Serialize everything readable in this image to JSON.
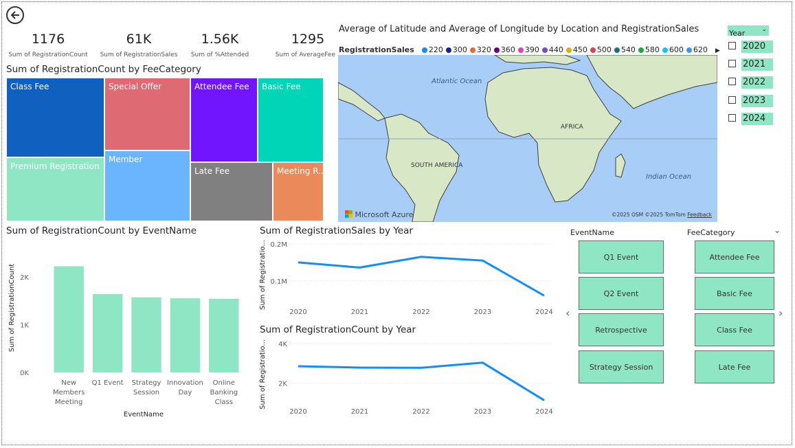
{
  "kpis": [
    {
      "value": "1176",
      "label": "Sum of RegistrationCount"
    },
    {
      "value": "61K",
      "label": "Sum of RegistrationSales"
    },
    {
      "value": "1.56K",
      "label": "Sum of %Attended"
    },
    {
      "value": "1295",
      "label": "Sum of AverageFee"
    }
  ],
  "treemap": {
    "title": "Sum of RegistrationCount by FeeCategory",
    "tiles": [
      {
        "label": "Class Fee",
        "color": "#1060c0"
      },
      {
        "label": "Premium Registration",
        "color": "#8fe6c5"
      },
      {
        "label": "Special Offer",
        "color": "#de6a73"
      },
      {
        "label": "Member",
        "color": "#6bb5ff"
      },
      {
        "label": "Attendee Fee",
        "color": "#7215ff"
      },
      {
        "label": "Basic Fee",
        "color": "#00d6b7"
      },
      {
        "label": "Late Fee",
        "color": "#808080"
      },
      {
        "label": "Meeting R...",
        "color": "#ea8a5a"
      }
    ]
  },
  "map": {
    "title": "Average of Latitude and Average of Longitude by Location and RegistrationSales",
    "legend_title": "RegistrationSales",
    "legend": [
      {
        "label": "220",
        "color": "#118dff"
      },
      {
        "label": "300",
        "color": "#12239e"
      },
      {
        "label": "320",
        "color": "#e66c37"
      },
      {
        "label": "360",
        "color": "#6b007b"
      },
      {
        "label": "390",
        "color": "#e044a7"
      },
      {
        "label": "440",
        "color": "#744ec2"
      },
      {
        "label": "450",
        "color": "#d9b300"
      },
      {
        "label": "500",
        "color": "#d64550"
      },
      {
        "label": "540",
        "color": "#197278"
      },
      {
        "label": "580",
        "color": "#1aab40"
      },
      {
        "label": "600",
        "color": "#15c6f4"
      },
      {
        "label": "620",
        "color": "#4092ff"
      }
    ],
    "labels": {
      "atlantic": "Atlantic Ocean",
      "africa": "AFRICA",
      "south_america": "SOUTH AMERICA",
      "indian": "Indian Ocean"
    },
    "brand": "Microsoft Azure",
    "attribution": "©2025 OSM ©2025 TomTom",
    "feedback": "Feedback"
  },
  "year_slicer": {
    "header": "Year",
    "options": [
      "2020",
      "2021",
      "2022",
      "2023",
      "2024"
    ]
  },
  "bar_title": "Sum of RegistrationCount by EventName",
  "sales_title": "Sum of RegistrationSales by Year",
  "count_title": "Sum of RegistrationCount by Year",
  "event_slicer": {
    "header": "EventName",
    "options": [
      "Q1 Event",
      "Q2 Event",
      "Retrospective",
      "Strategy Session"
    ]
  },
  "fee_slicer": {
    "header": "FeeCategory",
    "options": [
      "Attendee Fee",
      "Basic Fee",
      "Class Fee",
      "Late Fee"
    ]
  },
  "chart_data": [
    {
      "type": "bar",
      "title": "Sum of RegistrationCount by EventName",
      "categories": [
        "New Members Meeting",
        "Q1 Event",
        "Strategy Session",
        "Innovation Day",
        "Online Banking Class"
      ],
      "values": [
        2220,
        1640,
        1570,
        1550,
        1540
      ],
      "xlabel": "EventName",
      "ylabel": "Sum of RegistrationCount",
      "yticks": [
        "0K",
        "1K",
        "2K"
      ],
      "ylim": [
        0,
        2500
      ],
      "color": "#8fe6c5"
    },
    {
      "type": "line",
      "title": "Sum of RegistrationSales by Year",
      "x": [
        "2020",
        "2021",
        "2022",
        "2023",
        "2024"
      ],
      "values": [
        150000,
        136000,
        165000,
        155000,
        60000
      ],
      "ylabel": "Sum of Registratio...",
      "yticks": [
        "0.1M",
        "0.2M"
      ],
      "ylim": [
        40000,
        200000
      ],
      "color": "#118dff"
    },
    {
      "type": "line",
      "title": "Sum of RegistrationCount by Year",
      "x": [
        "2020",
        "2021",
        "2022",
        "2023",
        "2024"
      ],
      "values": [
        2850,
        2780,
        2770,
        3030,
        1120
      ],
      "ylabel": "Sum of Registratio...",
      "yticks": [
        "2K",
        "4K"
      ],
      "ylim": [
        1000,
        4000
      ],
      "color": "#118dff"
    }
  ]
}
